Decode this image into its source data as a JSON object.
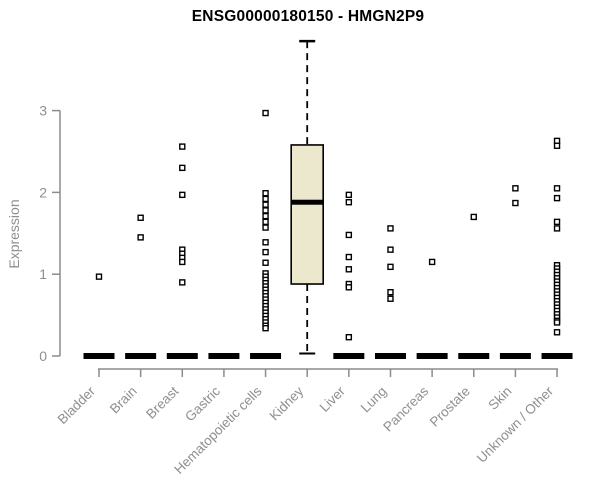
{
  "title": "ENSG00000180150 - HMGN2P9",
  "colors": {
    "axis": "#8c8c8c",
    "axis_text": "#8f8f8f",
    "title_text": "#000000",
    "box_fill": "#ece8cd",
    "box_stroke": "#000000",
    "outlier_stroke": "#000000",
    "outlier_fill": "#ffffff"
  },
  "chart_data": {
    "type": "boxplot",
    "title": "ENSG00000180150 - HMGN2P9",
    "xlabel": "",
    "ylabel": "Expression",
    "y_ticks": [
      0,
      1,
      2,
      3
    ],
    "ylim_drawn": [
      0,
      3
    ],
    "grid": false,
    "legend": null,
    "categories": [
      "Bladder",
      "Brain",
      "Breast",
      "Gastric",
      "Hematopoietic cells",
      "Kidney",
      "Liver",
      "Lung",
      "Pancreas",
      "Prostate",
      "Skin",
      "Unknown / Other"
    ],
    "boxes": [
      {
        "category": "Bladder",
        "whisker_low": 0,
        "q1": 0,
        "median": 0,
        "q3": 0,
        "whisker_high": 0,
        "outliers": [
          0.97
        ]
      },
      {
        "category": "Brain",
        "whisker_low": 0,
        "q1": 0,
        "median": 0,
        "q3": 0,
        "whisker_high": 0,
        "outliers": [
          1.69,
          1.45
        ]
      },
      {
        "category": "Breast",
        "whisker_low": 0,
        "q1": 0,
        "median": 0,
        "q3": 0,
        "whisker_high": 0,
        "outliers": [
          2.56,
          2.3,
          1.97,
          1.3,
          1.25,
          1.2,
          1.15,
          0.9
        ]
      },
      {
        "category": "Gastric",
        "whisker_low": 0,
        "q1": 0,
        "median": 0,
        "q3": 0,
        "whisker_high": 0,
        "outliers": []
      },
      {
        "category": "Hematopoietic cells",
        "whisker_low": 0,
        "q1": 0,
        "median": 0,
        "q3": 0,
        "whisker_high": 0,
        "outliers": [
          2.97,
          1.99,
          1.92,
          1.85,
          1.78,
          1.71,
          1.64,
          1.57,
          1.39,
          1.27,
          1.14,
          1.01,
          0.97,
          0.93,
          0.89,
          0.85,
          0.81,
          0.77,
          0.73,
          0.69,
          0.65,
          0.61,
          0.57,
          0.53,
          0.49,
          0.45,
          0.41,
          0.37,
          0.34
        ]
      },
      {
        "category": "Kidney",
        "whisker_low": 0.03,
        "q1": 0.88,
        "median": 1.88,
        "q3": 2.58,
        "whisker_high": 3.85,
        "outliers": []
      },
      {
        "category": "Liver",
        "whisker_low": 0,
        "q1": 0,
        "median": 0,
        "q3": 0,
        "whisker_high": 0,
        "outliers": [
          1.97,
          1.88,
          1.48,
          1.21,
          1.06,
          0.88,
          0.84,
          0.23
        ]
      },
      {
        "category": "Lung",
        "whisker_low": 0,
        "q1": 0,
        "median": 0,
        "q3": 0,
        "whisker_high": 0,
        "outliers": [
          1.56,
          1.3,
          1.09,
          0.78,
          0.7
        ]
      },
      {
        "category": "Pancreas",
        "whisker_low": 0,
        "q1": 0,
        "median": 0,
        "q3": 0,
        "whisker_high": 0,
        "outliers": [
          1.15
        ]
      },
      {
        "category": "Prostate",
        "whisker_low": 0,
        "q1": 0,
        "median": 0,
        "q3": 0,
        "whisker_high": 0,
        "outliers": [
          1.7
        ]
      },
      {
        "category": "Skin",
        "whisker_low": 0,
        "q1": 0,
        "median": 0,
        "q3": 0,
        "whisker_high": 0,
        "outliers": [
          2.05,
          1.87
        ]
      },
      {
        "category": "Unknown / Other",
        "whisker_low": 0,
        "q1": 0,
        "median": 0,
        "q3": 0,
        "whisker_high": 0,
        "outliers": [
          2.63,
          2.57,
          2.05,
          1.93,
          1.64,
          1.56,
          1.11,
          1.07,
          1.03,
          0.99,
          0.95,
          0.91,
          0.87,
          0.83,
          0.79,
          0.75,
          0.71,
          0.67,
          0.63,
          0.59,
          0.55,
          0.51,
          0.47,
          0.43,
          0.41,
          0.29
        ]
      }
    ]
  }
}
